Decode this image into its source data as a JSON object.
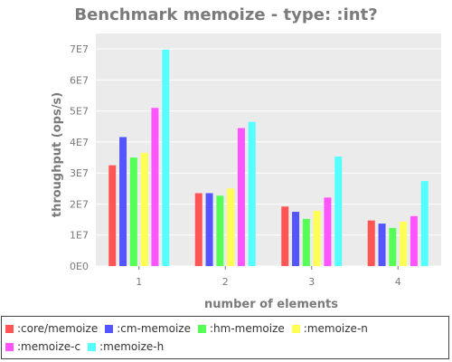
{
  "chart_data": {
    "type": "bar",
    "title": "Benchmark memoize - type: :int?",
    "xlabel": "number of elements",
    "ylabel": "throughput (ops/s)",
    "categories": [
      "1",
      "2",
      "3",
      "4"
    ],
    "ylim": [
      0,
      75000000
    ],
    "yticks": [
      0,
      10000000,
      20000000,
      30000000,
      40000000,
      50000000,
      60000000,
      70000000
    ],
    "ytick_labels": [
      "0E0",
      "1E7",
      "2E7",
      "3E7",
      "4E7",
      "5E7",
      "6E7",
      "7E7"
    ],
    "grid": true,
    "legend_position": "bottom",
    "series": [
      {
        "name": ":core/memoize",
        "color": "#ff5555",
        "values": [
          32500000,
          23500000,
          19200000,
          14700000
        ]
      },
      {
        "name": ":cm-memoize",
        "color": "#5555ff",
        "values": [
          41600000,
          23500000,
          17500000,
          13700000
        ]
      },
      {
        "name": ":hm-memoize",
        "color": "#55ff55",
        "values": [
          35000000,
          22700000,
          15200000,
          12300000
        ]
      },
      {
        "name": ":memoize-n",
        "color": "#ffff55",
        "values": [
          36500000,
          25000000,
          17800000,
          14300000
        ]
      },
      {
        "name": ":memoize-c",
        "color": "#ff55ff",
        "values": [
          51000000,
          44500000,
          22100000,
          16100000
        ]
      },
      {
        "name": ":memoize-h",
        "color": "#55ffff",
        "values": [
          69800000,
          46500000,
          35300000,
          27400000
        ]
      }
    ]
  }
}
